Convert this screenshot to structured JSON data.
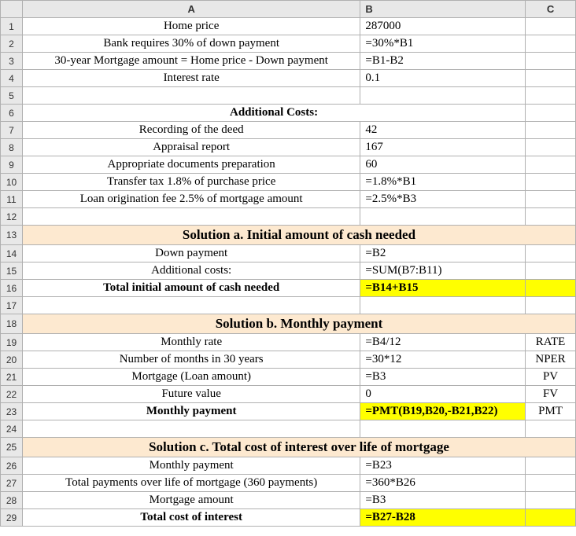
{
  "columns": {
    "A": "A",
    "B": "B",
    "C": "C"
  },
  "rows": {
    "1": {
      "A": "Home price",
      "B": "287000",
      "C": ""
    },
    "2": {
      "A": "Bank requires 30% of down payment",
      "B": "=30%*B1",
      "C": ""
    },
    "3": {
      "A": "30-year Mortgage amount = Home price - Down payment",
      "B": "=B1-B2",
      "C": ""
    },
    "4": {
      "A": "Interest rate",
      "B": "0.1",
      "C": ""
    },
    "5": {
      "A": "",
      "B": "",
      "C": ""
    },
    "6": {
      "AB": "Additional Costs:",
      "C": ""
    },
    "7": {
      "A": "Recording of the deed",
      "B": "42",
      "C": ""
    },
    "8": {
      "A": "Appraisal report",
      "B": "167",
      "C": ""
    },
    "9": {
      "A": "Appropriate documents preparation",
      "B": "60",
      "C": ""
    },
    "10": {
      "A": "Transfer tax 1.8% of purchase price",
      "B": "=1.8%*B1",
      "C": ""
    },
    "11": {
      "A": "Loan origination fee 2.5% of mortgage amount",
      "B": "=2.5%*B3",
      "C": ""
    },
    "12": {
      "A": "",
      "B": "",
      "C": ""
    },
    "13": {
      "ABC": "Solution a. Initial amount of cash needed"
    },
    "14": {
      "A": "Down payment",
      "B": "=B2",
      "C": ""
    },
    "15": {
      "A": "Additional costs:",
      "B": "=SUM(B7:B11)",
      "C": ""
    },
    "16": {
      "A": "Total initial amount of cash needed",
      "B": "=B14+B15",
      "C": ""
    },
    "17": {
      "A": "",
      "B": "",
      "C": ""
    },
    "18": {
      "ABC": "Solution b. Monthly payment"
    },
    "19": {
      "A": "Monthly rate",
      "B": "=B4/12",
      "C": "RATE"
    },
    "20": {
      "A": "Number of months in 30 years",
      "B": "=30*12",
      "C": "NPER"
    },
    "21": {
      "A": "Mortgage (Loan amount)",
      "B": "=B3",
      "C": "PV"
    },
    "22": {
      "A": "Future value",
      "B": "0",
      "C": "FV"
    },
    "23": {
      "A": "Monthly payment",
      "B": "=PMT(B19,B20,-B21,B22)",
      "C": "PMT"
    },
    "24": {
      "A": "",
      "B": "",
      "C": ""
    },
    "25": {
      "ABC": "Solution c. Total cost of interest over life of mortgage"
    },
    "26": {
      "A": "Monthly payment",
      "B": "=B23",
      "C": ""
    },
    "27": {
      "A": "Total payments over life of mortgage (360 payments)",
      "B": "=360*B26",
      "C": ""
    },
    "28": {
      "A": "Mortgage amount",
      "B": "=B3",
      "C": ""
    },
    "29": {
      "A": "Total cost of interest",
      "B": "=B27-B28",
      "C": ""
    }
  }
}
